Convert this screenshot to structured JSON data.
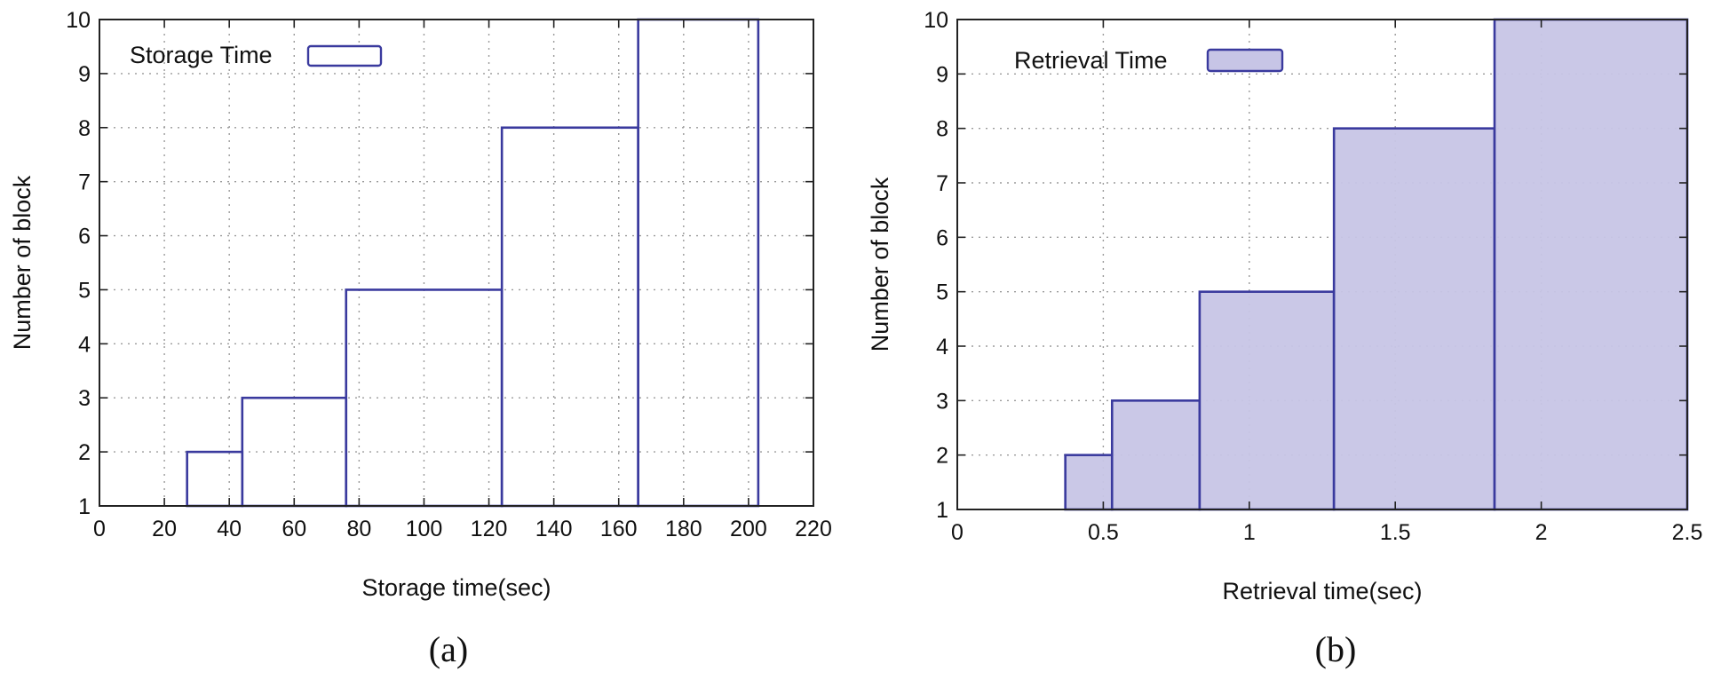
{
  "chart_data": [
    {
      "type": "bar",
      "style": "outline-histogram",
      "caption": "(a)",
      "title": "",
      "xlabel": "Storage time(sec)",
      "ylabel": "Number of block",
      "xlim": [
        0,
        220
      ],
      "ylim": [
        1,
        10
      ],
      "xticks": [
        0,
        20,
        40,
        60,
        80,
        100,
        120,
        140,
        160,
        180,
        200,
        220
      ],
      "yticks": [
        1,
        2,
        3,
        4,
        5,
        6,
        7,
        8,
        9,
        10
      ],
      "xtick_labels": [
        "0",
        "20",
        "40",
        "60",
        "80",
        "100",
        "120",
        "140",
        "160",
        "180",
        "200",
        "220"
      ],
      "ytick_labels": [
        "1",
        "2",
        "3",
        "4",
        "5",
        "6",
        "7",
        "8",
        "9",
        "10"
      ],
      "grid": true,
      "legend": {
        "position": "top-left",
        "label": "Storage Time"
      },
      "series": [
        {
          "name": "Storage Time",
          "color": "#3a3a9e",
          "fill": "none",
          "bars": [
            {
              "x_start": 27,
              "x_end": 44,
              "value": 2
            },
            {
              "x_start": 44,
              "x_end": 76,
              "value": 3
            },
            {
              "x_start": 76,
              "x_end": 124,
              "value": 5
            },
            {
              "x_start": 124,
              "x_end": 166,
              "value": 8
            },
            {
              "x_start": 166,
              "x_end": 203,
              "value": 10
            }
          ]
        }
      ]
    },
    {
      "type": "bar",
      "style": "filled-histogram",
      "caption": "(b)",
      "title": "",
      "xlabel": "Retrieval time(sec)",
      "ylabel": "Number of block",
      "xlim": [
        0,
        2.5
      ],
      "ylim": [
        1,
        10
      ],
      "xticks": [
        0,
        0.5,
        1,
        1.5,
        2,
        2.5
      ],
      "yticks": [
        1,
        2,
        3,
        4,
        5,
        6,
        7,
        8,
        9,
        10
      ],
      "xtick_labels": [
        "0",
        "0.5",
        "1",
        "1.5",
        "2",
        "2.5"
      ],
      "ytick_labels": [
        "1",
        "2",
        "3",
        "4",
        "5",
        "6",
        "7",
        "8",
        "9",
        "10"
      ],
      "grid": true,
      "legend": {
        "position": "top-left",
        "label": "Retrieval Time"
      },
      "series": [
        {
          "name": "Retrieval Time",
          "color": "#3a3a9e",
          "fill": "#c7c5e6",
          "bars": [
            {
              "x_start": 0.37,
              "x_end": 0.53,
              "value": 2
            },
            {
              "x_start": 0.53,
              "x_end": 0.83,
              "value": 3
            },
            {
              "x_start": 0.83,
              "x_end": 1.29,
              "value": 5
            },
            {
              "x_start": 1.29,
              "x_end": 1.84,
              "value": 8
            },
            {
              "x_start": 1.84,
              "x_end": 2.5,
              "value": 10
            }
          ]
        }
      ]
    }
  ]
}
